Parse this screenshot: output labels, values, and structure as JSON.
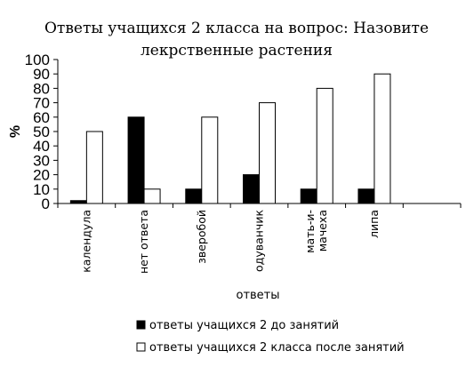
{
  "chart_data": {
    "type": "bar",
    "title_lines": [
      "Ответы учащихся 2 класса на вопрос: Назовите",
      "лекрственные растения"
    ],
    "xlabel": "ответы",
    "ylabel": "%",
    "ylim": [
      0,
      100
    ],
    "yticks": [
      0,
      10,
      20,
      30,
      40,
      50,
      60,
      70,
      80,
      90,
      100
    ],
    "categories": [
      [
        "календула"
      ],
      [
        "нет ответа"
      ],
      [
        "зверобой"
      ],
      [
        "одуванчик"
      ],
      [
        "мать-и-",
        "мачеха"
      ],
      [
        "липа"
      ]
    ],
    "extra_category_slots": 1,
    "series": [
      {
        "name": "ответы учащихся 2 до занятий",
        "values": [
          2,
          60,
          10,
          20,
          10,
          10
        ],
        "color": "#000000"
      },
      {
        "name": "ответы учащихся 2 класса после занятий",
        "values": [
          50,
          10,
          60,
          70,
          80,
          90
        ],
        "color": "#ffffff"
      }
    ],
    "legend_position": "bottom"
  }
}
